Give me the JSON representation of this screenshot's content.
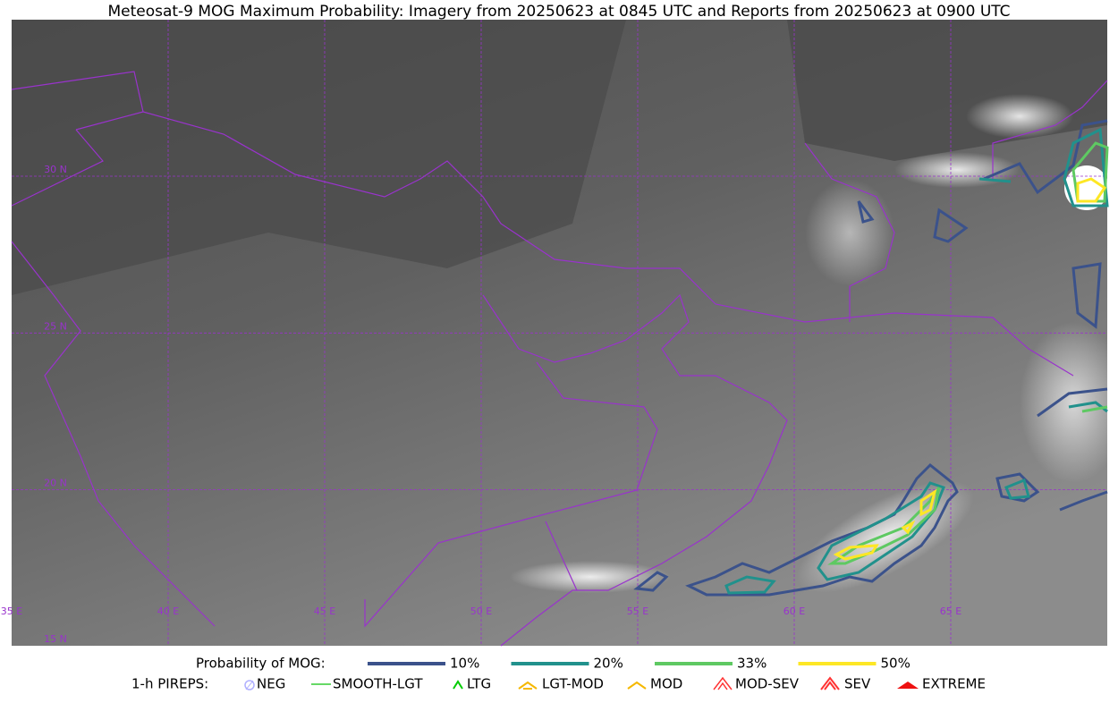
{
  "title": "Meteosat-9 MOG Maximum Probability: Imagery from 20250623 at 0845 UTC and Reports from 20250623 at 0900 UTC",
  "lon_labels": [
    "35 E",
    "40 E",
    "45 E",
    "50 E",
    "55 E",
    "60 E",
    "65 E"
  ],
  "lat_labels": [
    "30 N",
    "25 N",
    "20 N",
    "15 N"
  ],
  "legend": {
    "probability_title": "Probability of MOG:",
    "probability_items": [
      {
        "label": "10%",
        "color": "#3b528b"
      },
      {
        "label": "20%",
        "color": "#21918c"
      },
      {
        "label": "33%",
        "color": "#5ec962"
      },
      {
        "label": "50%",
        "color": "#fde725"
      }
    ],
    "pireps_title": "1-h PIREPS:",
    "pireps_items": [
      {
        "label": "NEG",
        "color": "#b0b0ff"
      },
      {
        "label": "SMOOTH-LGT",
        "color": "#33cc33"
      },
      {
        "label": "LTG",
        "color": "#00cc00"
      },
      {
        "label": "LGT-MOD",
        "color": "#f5b800"
      },
      {
        "label": "MOD",
        "color": "#f5b800"
      },
      {
        "label": "MOD-SEV",
        "color": "#ff3333"
      },
      {
        "label": "SEV",
        "color": "#ff3333"
      },
      {
        "label": "EXTREME",
        "color": "#ee1111"
      }
    ]
  }
}
